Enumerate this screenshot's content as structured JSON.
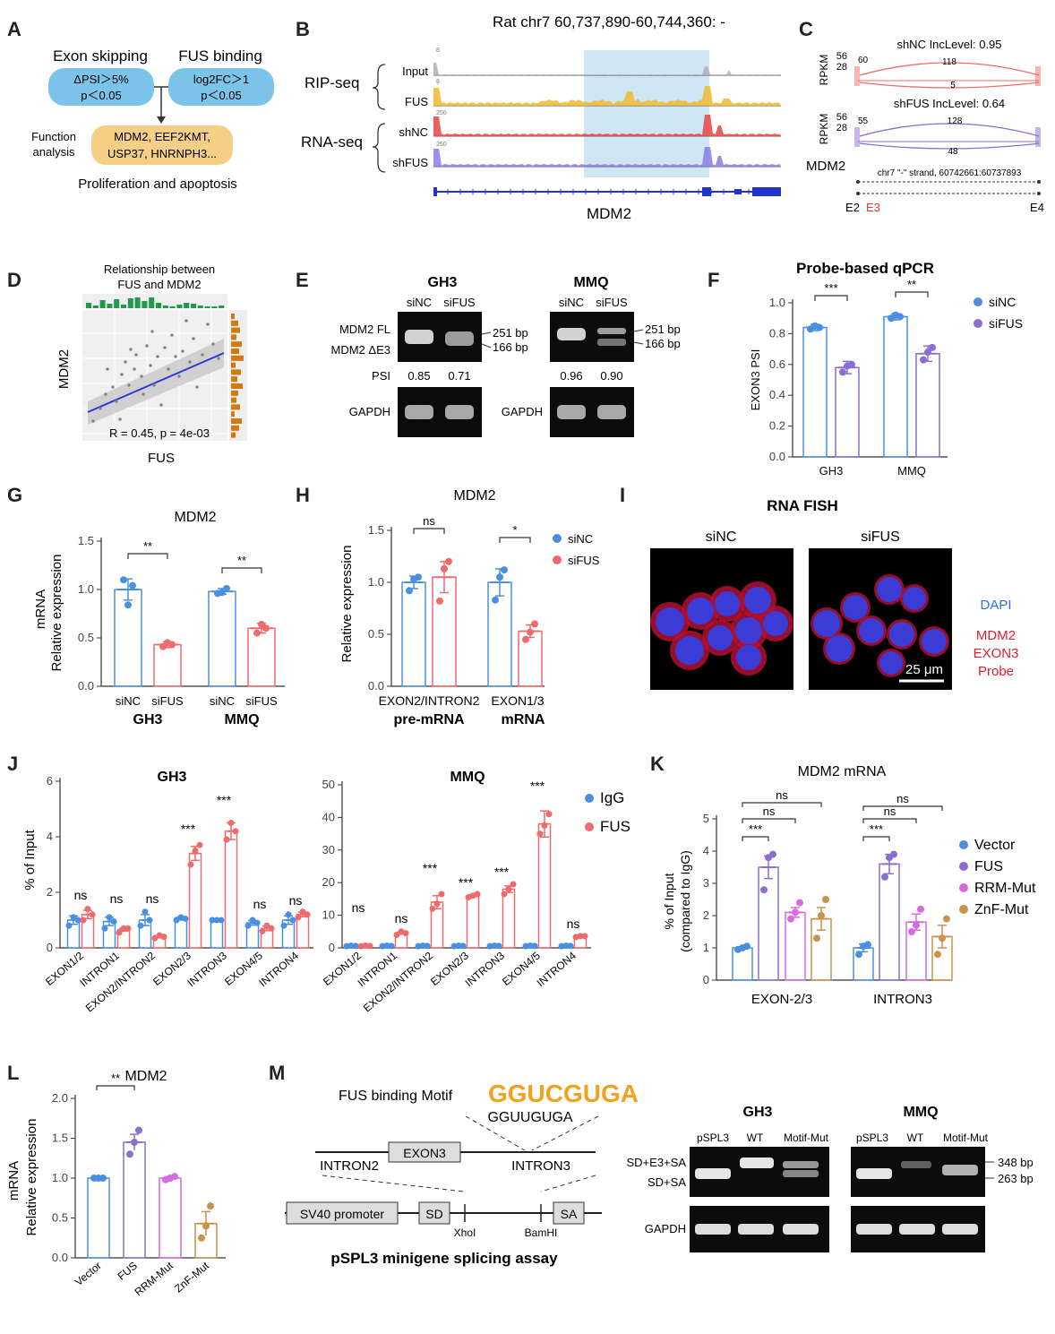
{
  "letters": [
    "A",
    "B",
    "C",
    "D",
    "E",
    "F",
    "G",
    "H",
    "I",
    "J",
    "K",
    "L",
    "M"
  ],
  "colors": {
    "blue": "#4a90e2",
    "red": "#ef6b6b",
    "purple": "#8a6fd1",
    "pink": "#d86ae0",
    "gold": "#c8934b",
    "orange_box": "#f4cf86",
    "blue_box": "#7cc3ea",
    "highlight": "#cfe6f5"
  },
  "panelA": {
    "header_left": "Exon skipping",
    "header_right": "FUS binding",
    "box_left_line1": "ΔPSI＞5%",
    "box_left_line2": "p＜0.05",
    "box_right_line1": "log2FC＞1",
    "box_right_line2": "p＜0.05",
    "function_label1": "Function",
    "function_label2": "analysis",
    "genes_line1": "MDM2, EEF2KMT,",
    "genes_line2": "USP37, HNRNPH3...",
    "footer": "Proliferation and apoptosis"
  },
  "panelB": {
    "title": "Rat chr7 60,737,890-60,744,360: -",
    "group1": "RIP-seq",
    "group2": "RNA-seq",
    "tracks": [
      "Input",
      "FUS",
      "shNC",
      "shFUS"
    ],
    "scales": [
      "8",
      "8",
      "250",
      "250"
    ],
    "gene": "MDM2"
  },
  "panelC": {
    "ylabel": "RPKM",
    "top_title": "shNC IncLevel: 0.95",
    "top_ticks": [
      "56",
      "28"
    ],
    "top_left_val": "60",
    "top_arc_val": "118",
    "top_low_val": "5",
    "bot_title": "shFUS IncLevel: 0.64",
    "bot_ticks": [
      "56",
      "28"
    ],
    "bot_left_val": "55",
    "bot_arc_val": "128",
    "bot_low_val": "48",
    "gene": "MDM2",
    "coord": "chr7 \"-\" strand, 60742661:60737893",
    "exon_labels": [
      "E2",
      "E3",
      "E4"
    ]
  },
  "panelD": {
    "title_line1": "Relationship between",
    "title_line2": "FUS and MDM2",
    "xlabel": "FUS",
    "ylabel": "MDM2",
    "stat": "R = 0.45, p = 4e-03"
  },
  "panelE": {
    "cell1": "GH3",
    "cell2": "MMQ",
    "lane_labels": [
      "siNC",
      "siFUS",
      "siNC",
      "siFUS"
    ],
    "band_fl": "MDM2 FL",
    "band_de3": "MDM2 ΔE3",
    "bp1": "251 bp",
    "bp2": "166 bp",
    "psi_label": "PSI",
    "psi_values": [
      "0.85",
      "0.71",
      "0.96",
      "0.90"
    ],
    "gapdh": "GAPDH"
  },
  "chart_data": [
    {
      "id": "F",
      "type": "bar",
      "title": "Probe-based qPCR",
      "ylabel": "EXON3 PSI",
      "ylim": [
        0,
        1.0
      ],
      "yticks": [
        "0.0",
        "0.2",
        "0.4",
        "0.6",
        "0.8",
        "1.0"
      ],
      "categories": [
        "GH3",
        "MMQ"
      ],
      "series": [
        {
          "name": "siNC",
          "values": [
            0.84,
            0.91
          ],
          "points": [
            [
              0.83,
              0.85,
              0.84
            ],
            [
              0.9,
              0.92,
              0.91
            ]
          ],
          "err": [
            0.02,
            0.02
          ]
        },
        {
          "name": "siFUS",
          "values": [
            0.58,
            0.67
          ],
          "points": [
            [
              0.55,
              0.59,
              0.6
            ],
            [
              0.63,
              0.68,
              0.71
            ]
          ],
          "err": [
            0.04,
            0.05
          ]
        }
      ],
      "sig": [
        "***",
        "**"
      ]
    },
    {
      "id": "G",
      "type": "bar",
      "title": "MDM2",
      "ylabel": "Relative expression",
      "ylabel2": "mRNA",
      "ylim": [
        0,
        1.5
      ],
      "yticks": [
        "0.0",
        "0.5",
        "1.0",
        "1.5"
      ],
      "categories": [
        "GH3",
        "MMQ"
      ],
      "bar_labels": [
        "siNC",
        "siFUS",
        "siNC",
        "siFUS"
      ],
      "series": [
        {
          "name": "siNC",
          "values": [
            1.0,
            0.98
          ],
          "points": [
            [
              1.1,
              0.84,
              1.04
            ],
            [
              0.96,
              0.97,
              1.01
            ]
          ],
          "err": [
            0.11,
            0.03
          ]
        },
        {
          "name": "siFUS",
          "values": [
            0.43,
            0.6
          ],
          "points": [
            [
              0.41,
              0.45,
              0.43
            ],
            [
              0.55,
              0.64,
              0.6
            ]
          ],
          "err": [
            0.03,
            0.05
          ]
        }
      ],
      "sig": [
        "**",
        "**"
      ]
    },
    {
      "id": "H",
      "type": "bar",
      "title": "MDM2",
      "ylabel": "Relative expression",
      "ylim": [
        0,
        1.5
      ],
      "yticks": [
        "0.0",
        "0.5",
        "1.0",
        "1.5"
      ],
      "categories": [
        "EXON2/INTRON2",
        "EXON1/3"
      ],
      "group_labels": [
        "pre-mRNA",
        "mRNA"
      ],
      "series": [
        {
          "name": "siNC",
          "values": [
            1.0,
            1.0
          ],
          "points": [
            [
              0.92,
              1.03,
              1.05
            ],
            [
              0.83,
              1.05,
              1.12
            ]
          ],
          "err": [
            0.06,
            0.13
          ]
        },
        {
          "name": "siFUS",
          "values": [
            1.05,
            0.53
          ],
          "points": [
            [
              0.82,
              1.13,
              1.2
            ],
            [
              0.45,
              0.52,
              0.6
            ]
          ],
          "err": [
            0.15,
            0.06
          ]
        }
      ],
      "sig": [
        "ns",
        "*"
      ]
    },
    {
      "id": "J-GH3",
      "type": "bar",
      "title": "GH3",
      "ylabel": "% of Input",
      "ylim": [
        0,
        6
      ],
      "yticks": [
        "0",
        "2",
        "4",
        "6"
      ],
      "categories": [
        "EXON1/2",
        "INTRON1",
        "EXON2/INTRON2",
        "EXON2/3",
        "INTRON3",
        "EXON4/5",
        "INTRON4"
      ],
      "series": [
        {
          "name": "IgG",
          "values": [
            1.0,
            0.95,
            1.0,
            1.05,
            1.0,
            0.9,
            1.0
          ],
          "points": [
            [
              0.8,
              1.1,
              1.0
            ],
            [
              0.7,
              1.1,
              0.95
            ],
            [
              0.8,
              1.3,
              1.0
            ],
            [
              1.0,
              1.1,
              1.05
            ],
            [
              1.0,
              1.0,
              1.0
            ],
            [
              0.8,
              1.0,
              0.9
            ],
            [
              0.8,
              1.2,
              1.0
            ]
          ],
          "err": [
            0.15,
            0.15,
            0.2,
            0.05,
            0.03,
            0.08,
            0.15
          ]
        },
        {
          "name": "FUS",
          "values": [
            1.2,
            0.65,
            0.4,
            3.4,
            4.2,
            0.7,
            1.2
          ],
          "points": [
            [
              1.0,
              1.4,
              1.2
            ],
            [
              0.55,
              0.7,
              0.7
            ],
            [
              0.35,
              0.45,
              0.4
            ],
            [
              3.0,
              3.5,
              3.7
            ],
            [
              3.9,
              4.5,
              4.2
            ],
            [
              0.6,
              0.8,
              0.7
            ],
            [
              1.1,
              1.3,
              1.2
            ]
          ],
          "err": [
            0.15,
            0.05,
            0.04,
            0.25,
            0.3,
            0.08,
            0.08
          ]
        }
      ],
      "sig": [
        "ns",
        "ns",
        "ns",
        "***",
        "***",
        "ns",
        "ns"
      ]
    },
    {
      "id": "J-MMQ",
      "type": "bar",
      "title": "MMQ",
      "ylim": [
        0,
        50
      ],
      "yticks": [
        "0",
        "10",
        "20",
        "30",
        "40",
        "50"
      ],
      "categories": [
        "EXON1/2",
        "INTRON1",
        "EXON2/INTRON2",
        "EXON2/3",
        "INTRON3",
        "EXON4/5",
        "INTRON4"
      ],
      "series": [
        {
          "name": "IgG",
          "values": [
            0.6,
            0.6,
            0.6,
            0.6,
            0.6,
            0.6,
            0.6
          ],
          "points": [
            [
              0.5,
              0.7,
              0.6
            ],
            [
              0.5,
              0.7,
              0.6
            ],
            [
              0.5,
              0.7,
              0.6
            ],
            [
              0.5,
              0.7,
              0.6
            ],
            [
              0.5,
              0.7,
              0.6
            ],
            [
              0.5,
              0.7,
              0.6
            ],
            [
              0.5,
              0.7,
              0.6
            ]
          ],
          "err": [
            0.1,
            0.1,
            0.1,
            0.1,
            0.1,
            0.1,
            0.1
          ]
        },
        {
          "name": "FUS",
          "values": [
            0.6,
            4.5,
            14.0,
            16.0,
            18.0,
            38.0,
            3.5
          ],
          "points": [
            [
              0.5,
              0.7,
              0.6
            ],
            [
              4.0,
              5.0,
              4.5
            ],
            [
              12.0,
              13.5,
              16.5
            ],
            [
              15.5,
              16.0,
              16.5
            ],
            [
              16.5,
              18.0,
              19.5
            ],
            [
              35.0,
              37.5,
              41.0
            ],
            [
              3.3,
              3.6,
              3.6
            ]
          ],
          "err": [
            0.1,
            0.3,
            2.0,
            0.3,
            1.0,
            4.0,
            0.2
          ]
        }
      ],
      "sig": [
        "ns",
        "ns",
        "***",
        "***",
        "***",
        "***",
        "ns"
      ]
    },
    {
      "id": "K",
      "type": "bar",
      "title": "MDM2 mRNA",
      "ylabel": "% of Input",
      "ylabel2": "(compared to IgG)",
      "ylim": [
        0,
        5
      ],
      "yticks": [
        "0",
        "1",
        "2",
        "3",
        "4",
        "5"
      ],
      "categories": [
        "EXON-2/3",
        "INTRON3"
      ],
      "series": [
        {
          "name": "Vector",
          "values": [
            1.0,
            1.0
          ],
          "points": [
            [
              0.95,
              1.0,
              1.05
            ],
            [
              0.8,
              1.05,
              1.1
            ]
          ],
          "err": [
            0.03,
            0.12
          ]
        },
        {
          "name": "FUS",
          "values": [
            3.5,
            3.6
          ],
          "points": [
            [
              2.8,
              3.8,
              3.9
            ],
            [
              3.2,
              3.8,
              3.9
            ]
          ],
          "err": [
            0.35,
            0.3
          ]
        },
        {
          "name": "RRM-Mut",
          "values": [
            2.1,
            1.8
          ],
          "points": [
            [
              1.9,
              2.1,
              2.4
            ],
            [
              1.5,
              1.7,
              2.2
            ]
          ],
          "err": [
            0.15,
            0.25
          ]
        },
        {
          "name": "ZnF-Mut",
          "values": [
            1.9,
            1.35
          ],
          "points": [
            [
              1.3,
              2.0,
              2.5
            ],
            [
              0.8,
              1.3,
              1.9
            ]
          ],
          "err": [
            0.35,
            0.35
          ]
        }
      ],
      "sig": [
        "***",
        "ns",
        "ns",
        "***",
        "ns",
        "ns"
      ]
    },
    {
      "id": "L",
      "type": "bar",
      "title": "MDM2",
      "ylabel": "Relative expression",
      "ylabel2": "mRNA",
      "ylim": [
        0,
        2.0
      ],
      "yticks": [
        "0.0",
        "0.5",
        "1.0",
        "1.5",
        "2.0"
      ],
      "categories": [
        "Vector",
        "FUS",
        "RRM-Mut",
        "ZnF-Mut"
      ],
      "values": [
        1.0,
        1.45,
        1.0,
        0.43
      ],
      "points": [
        [
          1.0,
          1.0,
          1.0
        ],
        [
          1.3,
          1.45,
          1.6
        ],
        [
          0.98,
          1.0,
          1.02
        ],
        [
          0.25,
          0.4,
          0.65
        ]
      ],
      "err": [
        0.01,
        0.1,
        0.02,
        0.15
      ],
      "sig": [
        "**"
      ]
    }
  ],
  "panelI": {
    "title": "RNA FISH",
    "left": "siNC",
    "right": "siFUS",
    "dapi": "DAPI",
    "probe_line1": "MDM2",
    "probe_line2": "EXON3",
    "probe_line3": "Probe",
    "scale": "25 μm"
  },
  "panelM": {
    "motif_label": "FUS binding Motif",
    "motif_logo": "GGUCGUGA",
    "motif_seq": "GGUUGUGA",
    "intron2": "INTRON2",
    "exon3": "EXON3",
    "intron3": "INTRON3",
    "sv40": "SV40 promoter",
    "sd": "SD",
    "sa": "SA",
    "xhoi": "XhoI",
    "bamhi": "BamHI",
    "caption": "pSPL3 minigene splicing assay",
    "gel_title1": "GH3",
    "gel_title2": "MMQ",
    "lanes": [
      "pSPL3",
      "WT",
      "Motif-Mut"
    ],
    "band_upper": "SD+E3+SA",
    "band_lower": "SD+SA",
    "bp_upper": "348 bp",
    "bp_lower": "263 bp",
    "gapdh": "GAPDH"
  }
}
